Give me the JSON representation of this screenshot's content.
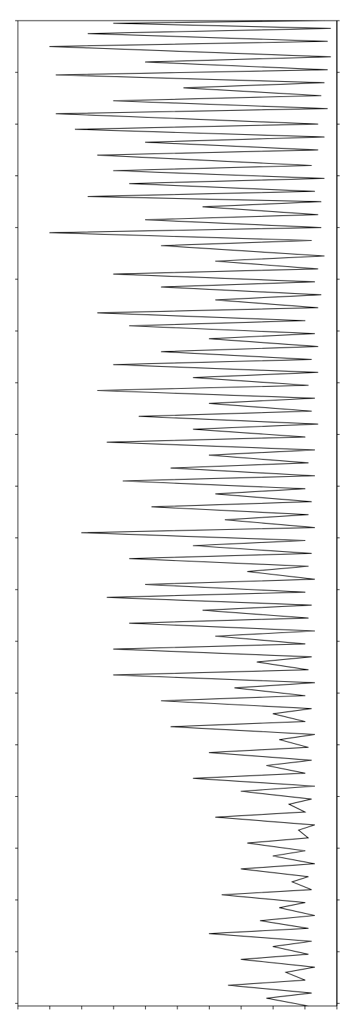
{
  "chart_data": {
    "type": "line",
    "title": "",
    "xlabel": "",
    "ylabel": "",
    "orientation": "rotated-90",
    "grid": false,
    "legend": "none",
    "ylim": [
      0,
      100
    ],
    "series": [
      {
        "color": "#000000",
        "points": [
          [
            2780,
            96
          ],
          [
            2779.5,
            30
          ],
          [
            2778.5,
            98
          ],
          [
            2777.5,
            22
          ],
          [
            2776,
            97
          ],
          [
            2775,
            10
          ],
          [
            2773,
            98
          ],
          [
            2772,
            40
          ],
          [
            2770.5,
            97
          ],
          [
            2769.5,
            12
          ],
          [
            2768,
            96
          ],
          [
            2767,
            52
          ],
          [
            2765.5,
            95
          ],
          [
            2764.5,
            30
          ],
          [
            2763,
            97
          ],
          [
            2762,
            12
          ],
          [
            2760,
            94
          ],
          [
            2759,
            18
          ],
          [
            2757.5,
            96
          ],
          [
            2756.5,
            40
          ],
          [
            2755,
            94
          ],
          [
            2754,
            25
          ],
          [
            2752,
            92
          ],
          [
            2751,
            30
          ],
          [
            2749.5,
            96
          ],
          [
            2748.5,
            35
          ],
          [
            2747,
            93
          ],
          [
            2746,
            22
          ],
          [
            2745,
            95
          ],
          [
            2744,
            58
          ],
          [
            2742.5,
            94
          ],
          [
            2741.5,
            40
          ],
          [
            2740,
            95
          ],
          [
            2739,
            10
          ],
          [
            2737.5,
            92
          ],
          [
            2736.5,
            45
          ],
          [
            2734.5,
            96
          ],
          [
            2733.5,
            62
          ],
          [
            2732,
            94
          ],
          [
            2731,
            30
          ],
          [
            2729.5,
            93
          ],
          [
            2728.5,
            45
          ],
          [
            2727,
            95
          ],
          [
            2726,
            62
          ],
          [
            2724.5,
            94
          ],
          [
            2723.5,
            25
          ],
          [
            2722,
            90
          ],
          [
            2721,
            35
          ],
          [
            2719.5,
            93
          ],
          [
            2718.5,
            60
          ],
          [
            2717,
            94
          ],
          [
            2716,
            45
          ],
          [
            2714.5,
            92
          ],
          [
            2713.5,
            30
          ],
          [
            2712,
            94
          ],
          [
            2711,
            55
          ],
          [
            2709.5,
            91
          ],
          [
            2708.5,
            25
          ],
          [
            2707,
            93
          ],
          [
            2706,
            60
          ],
          [
            2704.5,
            92
          ],
          [
            2703.5,
            38
          ],
          [
            2702,
            94
          ],
          [
            2701,
            55
          ],
          [
            2699.5,
            90
          ],
          [
            2698.5,
            28
          ],
          [
            2697,
            93
          ],
          [
            2696,
            60
          ],
          [
            2694.5,
            91
          ],
          [
            2693.5,
            48
          ],
          [
            2692,
            93
          ],
          [
            2691,
            33
          ],
          [
            2689.5,
            90
          ],
          [
            2688.5,
            62
          ],
          [
            2687,
            92
          ],
          [
            2686,
            42
          ],
          [
            2684.5,
            91
          ],
          [
            2683.5,
            65
          ],
          [
            2682,
            93
          ],
          [
            2681,
            20
          ],
          [
            2679.5,
            90
          ],
          [
            2678.5,
            55
          ],
          [
            2677,
            92
          ],
          [
            2676,
            35
          ],
          [
            2674.5,
            91
          ],
          [
            2673.5,
            72
          ],
          [
            2672,
            93
          ],
          [
            2671,
            40
          ],
          [
            2669.5,
            90
          ],
          [
            2668.5,
            28
          ],
          [
            2667,
            92
          ],
          [
            2666,
            58
          ],
          [
            2664.5,
            91
          ],
          [
            2663.5,
            35
          ],
          [
            2662,
            93
          ],
          [
            2661,
            62
          ],
          [
            2659.5,
            90
          ],
          [
            2658.5,
            30
          ],
          [
            2657,
            92
          ],
          [
            2656,
            75
          ],
          [
            2654.5,
            91
          ],
          [
            2653.5,
            30
          ],
          [
            2652,
            93
          ],
          [
            2651,
            68
          ],
          [
            2649.5,
            90
          ],
          [
            2648.5,
            45
          ],
          [
            2647,
            92
          ],
          [
            2646,
            80
          ],
          [
            2644.5,
            90
          ],
          [
            2643.5,
            48
          ],
          [
            2642,
            93
          ],
          [
            2641,
            82
          ],
          [
            2639.5,
            91
          ],
          [
            2638.5,
            60
          ],
          [
            2637,
            92
          ],
          [
            2636,
            78
          ],
          [
            2634.5,
            90
          ],
          [
            2633.5,
            55
          ],
          [
            2632,
            93
          ],
          [
            2631,
            70
          ],
          [
            2629.5,
            92
          ],
          [
            2628.5,
            85
          ],
          [
            2627,
            90
          ],
          [
            2626,
            62
          ],
          [
            2624.5,
            93
          ],
          [
            2623.5,
            88
          ],
          [
            2622,
            91
          ],
          [
            2621,
            72
          ],
          [
            2619.5,
            90
          ],
          [
            2618.5,
            80
          ],
          [
            2617,
            93
          ],
          [
            2616,
            70
          ],
          [
            2614.5,
            91
          ],
          [
            2613.5,
            86
          ],
          [
            2612,
            92
          ],
          [
            2611,
            64
          ],
          [
            2609.5,
            90
          ],
          [
            2608.5,
            82
          ],
          [
            2607,
            93
          ],
          [
            2606,
            76
          ],
          [
            2604.5,
            91
          ],
          [
            2603.5,
            60
          ],
          [
            2602,
            92
          ],
          [
            2601,
            80
          ],
          [
            2599.5,
            91
          ],
          [
            2598.5,
            70
          ],
          [
            2597,
            93
          ],
          [
            2596,
            84
          ],
          [
            2594.5,
            90
          ],
          [
            2593.5,
            66
          ],
          [
            2592,
            92
          ],
          [
            2591,
            78
          ],
          [
            2589.5,
            91
          ]
        ]
      }
    ]
  }
}
